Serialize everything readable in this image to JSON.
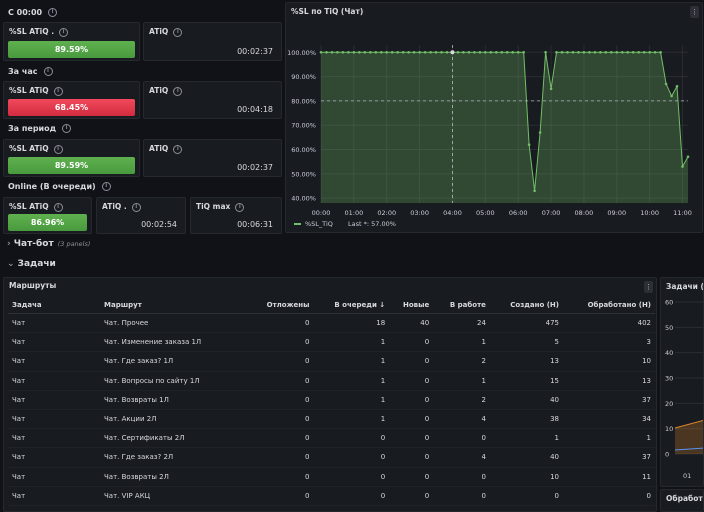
{
  "headers": {
    "c0000": "С 00:00",
    "hour": "За час",
    "period": "За период",
    "online": "Online (В очереди)"
  },
  "stats": {
    "c0000": {
      "sl_title": "%SL ATiQ .",
      "sl_value": "89.59%",
      "atiq_title": "ATiQ",
      "atiq_value": "00:02:37"
    },
    "hour": {
      "sl_title": "%SL ATiQ",
      "sl_value": "68.45%",
      "atiq_title": "ATiQ",
      "atiq_value": "00:04:18"
    },
    "period": {
      "sl_title": "%SL ATiQ",
      "sl_value": "89.59%",
      "atiq_title": "ATiQ",
      "atiq_value": "00:02:37"
    },
    "online": {
      "sl_title": "%SL ATiQ",
      "sl_value": "86.96%",
      "atiq_title": "ATiQ .",
      "atiq_value": "00:02:54",
      "tiq_title": "TiQ max",
      "tiq_value": "00:06:31"
    }
  },
  "colors": {
    "good": "#56a64b",
    "bad": "#e02f44",
    "series": "#73bf69"
  },
  "chart_panel": {
    "title": "%SL по TiQ (Чат)",
    "menu_icon": "kebab-menu-icon"
  },
  "chart_data": {
    "type": "area",
    "title": "%SL по TiQ (Чат)",
    "x": [
      "00:00",
      "00:10",
      "00:20",
      "00:30",
      "00:40",
      "00:50",
      "01:00",
      "01:10",
      "01:20",
      "01:30",
      "01:40",
      "01:50",
      "02:00",
      "02:10",
      "02:20",
      "02:30",
      "02:40",
      "02:50",
      "03:00",
      "03:10",
      "03:20",
      "03:30",
      "03:40",
      "03:50",
      "04:00",
      "04:10",
      "04:20",
      "04:30",
      "04:40",
      "04:50",
      "05:00",
      "05:10",
      "05:20",
      "05:30",
      "05:40",
      "05:50",
      "06:00",
      "06:10",
      "06:20",
      "06:30",
      "06:40",
      "06:50",
      "07:00",
      "07:10",
      "07:20",
      "07:30",
      "07:40",
      "07:50",
      "08:00",
      "08:10",
      "08:20",
      "08:30",
      "08:40",
      "08:50",
      "09:00",
      "09:10",
      "09:20",
      "09:30",
      "09:40",
      "09:50",
      "10:00",
      "10:10",
      "10:20",
      "10:30",
      "10:40",
      "10:50",
      "11:00",
      "11:10"
    ],
    "series": [
      {
        "name": "%SL_TiQ",
        "values": [
          100,
          100,
          100,
          100,
          100,
          100,
          100,
          100,
          100,
          100,
          100,
          100,
          100,
          100,
          100,
          100,
          100,
          100,
          100,
          100,
          100,
          100,
          100,
          100,
          100,
          100,
          100,
          100,
          100,
          100,
          100,
          100,
          100,
          100,
          100,
          100,
          100,
          100,
          62,
          43,
          67,
          100,
          85,
          100,
          100,
          100,
          100,
          100,
          100,
          100,
          100,
          100,
          100,
          100,
          100,
          100,
          100,
          100,
          100,
          100,
          100,
          100,
          100,
          87,
          82,
          86,
          53,
          57
        ]
      }
    ],
    "x_ticks": [
      "00:00",
      "01:00",
      "02:00",
      "03:00",
      "04:00",
      "05:00",
      "06:00",
      "07:00",
      "08:00",
      "09:00",
      "10:00",
      "11:00"
    ],
    "y_ticks": [
      "100.00%",
      "90.00%",
      "80.00%",
      "70.00%",
      "60.00%",
      "50.00%",
      "40.00%"
    ],
    "ylim": [
      38,
      103
    ],
    "threshold": 80,
    "grid": true,
    "legend": {
      "series_name": "%SL_TiQ",
      "last_label": "Last *: 57.00%"
    }
  },
  "rows": {
    "chatbot": {
      "title": "Чат-бот",
      "subtitle": "(3 panels)"
    },
    "tasks": {
      "title": "Задачи"
    }
  },
  "table_panel": {
    "title": "Маршруты",
    "columns": [
      "Задача",
      "Маршрут",
      "Отложены",
      "В очереди",
      "Новые",
      "В работе",
      "Создано (Н)",
      "Обработано (Н)"
    ],
    "sort_indicator": "↓",
    "data": [
      [
        "Чат",
        "Чат. Прочее",
        "0",
        "18",
        "40",
        "24",
        "475",
        "402"
      ],
      [
        "Чат",
        "Чат. Изменение заказа 1Л",
        "0",
        "1",
        "0",
        "1",
        "5",
        "3"
      ],
      [
        "Чат",
        "Чат. Где заказ? 1Л",
        "0",
        "1",
        "0",
        "2",
        "13",
        "10"
      ],
      [
        "Чат",
        "Чат. Вопросы по сайту 1Л",
        "0",
        "1",
        "0",
        "1",
        "15",
        "13"
      ],
      [
        "Чат",
        "Чат. Возвраты 1Л",
        "0",
        "1",
        "0",
        "2",
        "40",
        "37"
      ],
      [
        "Чат",
        "Чат. Акции 2Л",
        "0",
        "1",
        "0",
        "4",
        "38",
        "34"
      ],
      [
        "Чат",
        "Чат. Сертификаты 2Л",
        "0",
        "0",
        "0",
        "0",
        "1",
        "1"
      ],
      [
        "Чат",
        "Чат. Где заказ? 2Л",
        "0",
        "0",
        "0",
        "4",
        "40",
        "37"
      ],
      [
        "Чат",
        "Чат. Возвраты 2Л",
        "0",
        "0",
        "0",
        "0",
        "10",
        "11"
      ],
      [
        "Чат",
        "Чат. VIP АКЦ",
        "0",
        "0",
        "0",
        "0",
        "0",
        "0"
      ]
    ]
  },
  "right_panel": {
    "title": "Задачи (Ча",
    "y_ticks": [
      "60",
      "50",
      "40",
      "30",
      "20",
      "10",
      "0"
    ],
    "x_tick": "01",
    "bottom_title": "Обработка"
  }
}
